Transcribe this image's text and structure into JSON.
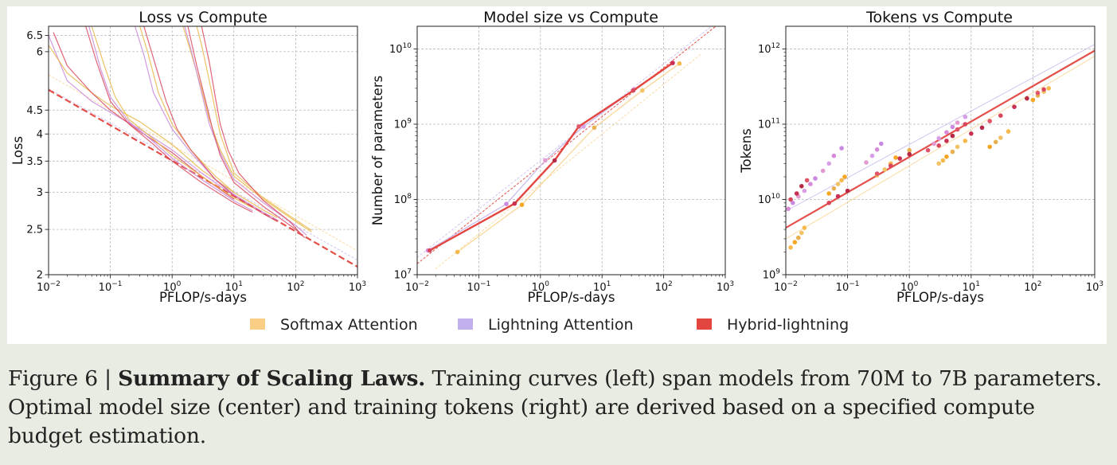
{
  "colors": {
    "softmax": "#f9cf86",
    "lightning": "#c2b0ec",
    "hybrid": "#e2463f",
    "grid": "#b8b8b8",
    "caption_bg": "#e9ece3"
  },
  "legend": {
    "entries": [
      {
        "label": "Softmax Attention",
        "color": "#f9cf86"
      },
      {
        "label": "Lightning Attention",
        "color": "#c2b0ec"
      },
      {
        "label": "Hybrid-lightning",
        "color": "#e2463f"
      }
    ]
  },
  "caption": {
    "prefix": "Figure 6 | ",
    "title": "Summary of Scaling Laws.",
    "body": " Training curves (left) span models from 70M to 7B parameters. Optimal model size (center) and training tokens (right) are derived based on a specified compute budget estimation."
  },
  "chart_data": [
    {
      "type": "line",
      "title": "Loss vs Compute",
      "xlabel": "PFLOP/s-days",
      "ylabel": "Loss",
      "xscale": "log",
      "yscale": "log",
      "xlim": [
        0.01,
        1000
      ],
      "ylim": [
        2,
        6.8
      ],
      "xticks": [
        {
          "v": 0.01,
          "base": "10",
          "exp": "−2"
        },
        {
          "v": 0.1,
          "base": "10",
          "exp": "−1"
        },
        {
          "v": 1,
          "base": "10",
          "exp": "0"
        },
        {
          "v": 10,
          "base": "10",
          "exp": "1"
        },
        {
          "v": 100,
          "base": "10",
          "exp": "2"
        },
        {
          "v": 1000,
          "base": "10",
          "exp": "3"
        }
      ],
      "yticks": [
        {
          "v": 2,
          "label": "2"
        },
        {
          "v": 2.5,
          "label": "2.5"
        },
        {
          "v": 3,
          "label": "3"
        },
        {
          "v": 3.5,
          "label": "3.5"
        },
        {
          "v": 4,
          "label": "4"
        },
        {
          "v": 4.5,
          "label": "4.5"
        },
        {
          "v": 6,
          "label": "6"
        },
        {
          "v": 6.5,
          "label": "6.5"
        }
      ],
      "grid": true,
      "fit_lines": [
        {
          "series": "softmax",
          "x": [
            0.01,
            1000
          ],
          "y": [
            5.35,
            2.25
          ]
        },
        {
          "series": "lightning",
          "x": [
            0.01,
            1000
          ],
          "y": [
            5.0,
            2.15
          ]
        },
        {
          "series": "hybrid",
          "x": [
            0.01,
            1000
          ],
          "y": [
            4.97,
            2.08
          ]
        }
      ],
      "curves": [
        {
          "series": "lightning",
          "x": [
            0.01,
            0.02,
            0.05,
            0.1,
            0.3,
            1,
            3,
            10
          ],
          "y": [
            6.5,
            5.2,
            4.7,
            4.45,
            4.1,
            3.7,
            3.3,
            2.95
          ]
        },
        {
          "series": "softmax",
          "x": [
            0.01,
            0.02,
            0.05,
            0.1,
            0.3,
            1,
            3,
            10
          ],
          "y": [
            6.2,
            5.4,
            4.9,
            4.6,
            4.25,
            3.8,
            3.35,
            3.0
          ]
        },
        {
          "series": "hybrid",
          "x": [
            0.012,
            0.02,
            0.05,
            0.1,
            0.3,
            1,
            3,
            10
          ],
          "y": [
            6.6,
            5.6,
            4.9,
            4.5,
            4.05,
            3.65,
            3.25,
            2.9
          ]
        },
        {
          "series": "softmax",
          "x": [
            0.05,
            0.08,
            0.12,
            0.2,
            0.5,
            1,
            3,
            10,
            20
          ],
          "y": [
            6.8,
            5.6,
            4.8,
            4.3,
            3.9,
            3.6,
            3.25,
            2.92,
            2.78
          ]
        },
        {
          "series": "lightning",
          "x": [
            0.045,
            0.07,
            0.1,
            0.2,
            0.5,
            1,
            3,
            10,
            20
          ],
          "y": [
            6.8,
            5.5,
            4.8,
            4.25,
            3.85,
            3.55,
            3.2,
            2.88,
            2.74
          ]
        },
        {
          "series": "hybrid",
          "x": [
            0.04,
            0.06,
            0.1,
            0.2,
            0.5,
            1,
            3,
            10,
            20
          ],
          "y": [
            6.8,
            5.7,
            4.7,
            4.2,
            3.8,
            3.5,
            3.15,
            2.85,
            2.72
          ]
        },
        {
          "series": "softmax",
          "x": [
            0.3,
            0.4,
            0.6,
            1,
            2,
            5,
            10,
            30,
            50
          ],
          "y": [
            6.8,
            6.0,
            4.9,
            4.2,
            3.7,
            3.25,
            3.0,
            2.75,
            2.65
          ]
        },
        {
          "series": "lightning",
          "x": [
            0.25,
            0.35,
            0.5,
            1,
            2,
            5,
            10,
            30,
            50
          ],
          "y": [
            6.8,
            5.9,
            4.9,
            4.1,
            3.65,
            3.2,
            2.97,
            2.72,
            2.62
          ]
        },
        {
          "series": "hybrid",
          "x": [
            0.35,
            0.5,
            0.8,
            1.2,
            2,
            5,
            10,
            30,
            50
          ],
          "y": [
            6.8,
            5.8,
            4.7,
            4.1,
            3.7,
            3.2,
            2.95,
            2.7,
            2.6
          ]
        },
        {
          "series": "softmax",
          "x": [
            1.5,
            2,
            3,
            4,
            6,
            10,
            30,
            100,
            180
          ],
          "y": [
            6.8,
            6.0,
            5.0,
            4.3,
            3.7,
            3.25,
            2.9,
            2.6,
            2.47
          ]
        },
        {
          "series": "lightning",
          "x": [
            1.6,
            2.2,
            3,
            4,
            6,
            10,
            30,
            100,
            150
          ],
          "y": [
            6.8,
            5.8,
            4.9,
            4.2,
            3.65,
            3.2,
            2.85,
            2.55,
            2.43
          ]
        },
        {
          "series": "hybrid",
          "x": [
            1.8,
            2.5,
            3.5,
            4.5,
            6,
            10,
            30,
            100,
            140
          ],
          "y": [
            6.8,
            5.6,
            4.7,
            4.1,
            3.6,
            3.15,
            2.8,
            2.5,
            2.4
          ]
        },
        {
          "series": "softmax",
          "x": [
            2.5,
            3,
            4,
            5,
            6,
            10,
            30,
            100,
            180
          ],
          "y": [
            6.8,
            6.2,
            5.2,
            4.5,
            4.0,
            3.3,
            2.92,
            2.62,
            2.49
          ]
        },
        {
          "series": "hybrid",
          "x": [
            3,
            4,
            5,
            6,
            8,
            12,
            30,
            80,
            120
          ],
          "y": [
            6.8,
            5.7,
            4.8,
            4.2,
            3.7,
            3.3,
            2.88,
            2.6,
            2.45
          ]
        }
      ]
    },
    {
      "type": "line",
      "title": "Model size vs Compute",
      "xlabel": "PFLOP/s-days",
      "ylabel": "Number of parameters",
      "xscale": "log",
      "yscale": "log",
      "xlim": [
        0.01,
        1000
      ],
      "ylim": [
        10000000,
        20000000000
      ],
      "xticks": [
        {
          "v": 0.01,
          "base": "10",
          "exp": "−2"
        },
        {
          "v": 0.1,
          "base": "10",
          "exp": "−1"
        },
        {
          "v": 1,
          "base": "10",
          "exp": "0"
        },
        {
          "v": 10,
          "base": "10",
          "exp": "1"
        },
        {
          "v": 100,
          "base": "10",
          "exp": "2"
        },
        {
          "v": 1000,
          "base": "10",
          "exp": "3"
        }
      ],
      "yticks": [
        {
          "v": 10000000,
          "base": "10",
          "exp": "7"
        },
        {
          "v": 100000000,
          "base": "10",
          "exp": "8"
        },
        {
          "v": 1000000000,
          "base": "10",
          "exp": "9"
        },
        {
          "v": 10000000000,
          "base": "10",
          "exp": "10"
        }
      ],
      "grid": true,
      "series": [
        {
          "name": "softmax",
          "x": [
            0.045,
            0.5,
            7.5,
            45,
            180
          ],
          "y": [
            20000000,
            85000000,
            900000000,
            2800000000,
            6400000000
          ]
        },
        {
          "name": "lightning",
          "x": [
            0.015,
            0.28,
            1.2,
            5,
            33,
            140
          ],
          "y": [
            21000000,
            87000000,
            330000000,
            930000000,
            2900000000,
            6500000000
          ]
        },
        {
          "name": "hybrid",
          "x": [
            0.016,
            0.38,
            1.7,
            4.2,
            32,
            140
          ],
          "y": [
            21000000,
            88000000,
            330000000,
            930000000,
            2800000000,
            6500000000
          ]
        }
      ],
      "fit_lines": [
        {
          "series": "softmax",
          "x": [
            0.02,
            400
          ],
          "y": [
            12000000,
            8500000000
          ]
        },
        {
          "series": "lightning",
          "x": [
            0.01,
            600
          ],
          "y": [
            17000000,
            20000000000
          ]
        },
        {
          "series": "hybrid",
          "x": [
            0.01,
            700
          ],
          "y": [
            14000000,
            20000000000
          ]
        }
      ]
    },
    {
      "type": "scatter",
      "title": "Tokens vs Compute",
      "xlabel": "PFLOP/s-days",
      "ylabel": "Tokens",
      "xscale": "log",
      "yscale": "log",
      "xlim": [
        0.01,
        1000
      ],
      "ylim": [
        1000000000,
        2000000000000
      ],
      "xticks": [
        {
          "v": 0.01,
          "base": "10",
          "exp": "−2"
        },
        {
          "v": 0.1,
          "base": "10",
          "exp": "−1"
        },
        {
          "v": 1,
          "base": "10",
          "exp": "0"
        },
        {
          "v": 10,
          "base": "10",
          "exp": "1"
        },
        {
          "v": 100,
          "base": "10",
          "exp": "2"
        },
        {
          "v": 1000,
          "base": "10",
          "exp": "3"
        }
      ],
      "yticks": [
        {
          "v": 1000000000,
          "base": "10",
          "exp": "9"
        },
        {
          "v": 10000000000,
          "base": "10",
          "exp": "10"
        },
        {
          "v": 100000000000,
          "base": "10",
          "exp": "11"
        },
        {
          "v": 1000000000000,
          "base": "10",
          "exp": "12"
        }
      ],
      "grid": true,
      "fit_lines": [
        {
          "series": "lightning",
          "x": [
            0.01,
            1000
          ],
          "y": [
            7000000000,
            1150000000000
          ]
        },
        {
          "series": "softmax",
          "x": [
            0.01,
            1000
          ],
          "y": [
            3000000000,
            800000000000
          ]
        },
        {
          "series": "hybrid",
          "x": [
            0.01,
            1000
          ],
          "y": [
            4200000000,
            950000000000
          ]
        }
      ],
      "series": [
        {
          "name": "lightning",
          "x": [
            0.011,
            0.013,
            0.016,
            0.02,
            0.025,
            0.03,
            0.04,
            0.05,
            0.06,
            0.08,
            0.2,
            0.25,
            0.3,
            0.35,
            2.5,
            3,
            4,
            5,
            6,
            8
          ],
          "y": [
            7500000000,
            9000000000,
            11000000000,
            13000000000,
            16000000000,
            19000000000,
            24000000000,
            30000000000,
            38000000000,
            48000000000,
            31000000000,
            38000000000,
            46000000000,
            55000000000,
            55000000000,
            65000000000,
            78000000000,
            92000000000,
            105000000000,
            125000000000
          ]
        },
        {
          "name": "softmax",
          "x": [
            0.012,
            0.014,
            0.016,
            0.018,
            0.02,
            0.05,
            0.06,
            0.07,
            0.08,
            0.09,
            0.3,
            0.4,
            0.5,
            0.6,
            1,
            3,
            3.5,
            4,
            5,
            6,
            8,
            20,
            25,
            30,
            40,
            100,
            120,
            150,
            180
          ],
          "y": [
            2300000000,
            2700000000,
            3100000000,
            3600000000,
            4200000000,
            12000000000,
            14000000000,
            16000000000,
            18000000000,
            20000000000,
            21000000000,
            25000000000,
            30000000000,
            36000000000,
            45000000000,
            30000000000,
            33000000000,
            37000000000,
            43000000000,
            50000000000,
            60000000000,
            50000000000,
            58000000000,
            66000000000,
            80000000000,
            210000000000,
            240000000000,
            270000000000,
            300000000000
          ]
        },
        {
          "name": "hybrid",
          "x": [
            0.012,
            0.015,
            0.018,
            0.022,
            0.05,
            0.07,
            0.1,
            0.3,
            0.5,
            0.7,
            1,
            2,
            3,
            4,
            5,
            6,
            8,
            10,
            15,
            20,
            30,
            50,
            80,
            120,
            150
          ],
          "y": [
            10000000000,
            12000000000,
            15000000000,
            18000000000,
            9000000000,
            11000000000,
            13000000000,
            22000000000,
            28000000000,
            35000000000,
            40000000000,
            45000000000,
            52000000000,
            60000000000,
            70000000000,
            85000000000,
            100000000000,
            75000000000,
            90000000000,
            110000000000,
            130000000000,
            170000000000,
            220000000000,
            260000000000,
            290000000000
          ]
        }
      ]
    }
  ]
}
